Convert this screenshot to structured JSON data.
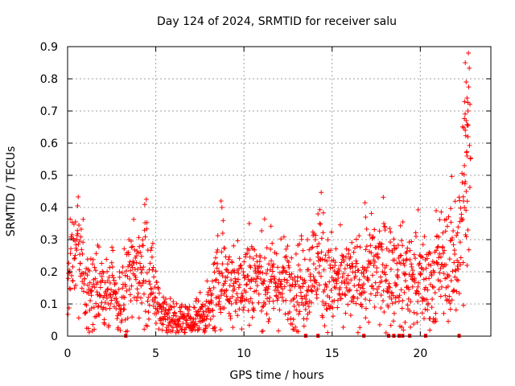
{
  "chart_data": {
    "type": "scatter",
    "title": "Day 124 of 2024, SRMTID for receiver salu",
    "xlabel": "GPS time / hours",
    "ylabel": "SRMTID / TECUs",
    "xlim": [
      0,
      24
    ],
    "ylim": [
      0,
      0.9
    ],
    "grid": true,
    "x_ticks": [
      "0",
      "5",
      "10",
      "15",
      "20"
    ],
    "x_tick_values": [
      0,
      5,
      10,
      15,
      20
    ],
    "y_ticks": [
      "0",
      "0.1",
      "0.2",
      "0.3",
      "0.4",
      "0.5",
      "0.6",
      "0.7",
      "0.8",
      "0.9"
    ],
    "y_tick_values": [
      0,
      0.1,
      0.2,
      0.3,
      0.4,
      0.5,
      0.6,
      0.7,
      0.8,
      0.9
    ],
    "marker_color": "#ff0000",
    "trend": [
      [
        0.0,
        0.15
      ],
      [
        0.3,
        0.2
      ],
      [
        0.6,
        0.28
      ],
      [
        0.8,
        0.2
      ],
      [
        1.2,
        0.15
      ],
      [
        1.8,
        0.14
      ],
      [
        2.3,
        0.13
      ],
      [
        3.0,
        0.12
      ],
      [
        3.5,
        0.17
      ],
      [
        4.0,
        0.22
      ],
      [
        4.4,
        0.26
      ],
      [
        4.8,
        0.15
      ],
      [
        5.2,
        0.1
      ],
      [
        5.7,
        0.06
      ],
      [
        6.2,
        0.05
      ],
      [
        7.0,
        0.05
      ],
      [
        7.5,
        0.06
      ],
      [
        8.0,
        0.08
      ],
      [
        8.4,
        0.14
      ],
      [
        8.8,
        0.2
      ],
      [
        9.3,
        0.15
      ],
      [
        9.8,
        0.16
      ],
      [
        10.5,
        0.19
      ],
      [
        11.0,
        0.17
      ],
      [
        12.0,
        0.16
      ],
      [
        13.0,
        0.17
      ],
      [
        13.5,
        0.16
      ],
      [
        14.3,
        0.24
      ],
      [
        14.8,
        0.17
      ],
      [
        15.5,
        0.16
      ],
      [
        16.5,
        0.17
      ],
      [
        17.0,
        0.2
      ],
      [
        18.0,
        0.2
      ],
      [
        19.0,
        0.18
      ],
      [
        20.0,
        0.18
      ],
      [
        20.5,
        0.17
      ],
      [
        21.0,
        0.2
      ],
      [
        21.7,
        0.23
      ],
      [
        22.2,
        0.27
      ],
      [
        22.5,
        0.5
      ],
      [
        22.8,
        0.58
      ]
    ],
    "spikes": [
      [
        8.7,
        0.42
      ],
      [
        8.75,
        0.4
      ],
      [
        8.8,
        0.32
      ],
      [
        10.3,
        0.35
      ],
      [
        13.6,
        0.3
      ],
      [
        14.2,
        0.38
      ],
      [
        14.3,
        0.35
      ],
      [
        16.9,
        0.37
      ],
      [
        18.0,
        0.33
      ],
      [
        20.9,
        0.39
      ],
      [
        22.55,
        0.85
      ],
      [
        22.6,
        0.79
      ],
      [
        22.65,
        0.74
      ],
      [
        22.7,
        0.7
      ],
      [
        22.6,
        0.67
      ],
      [
        22.55,
        0.64
      ],
      [
        22.7,
        0.62
      ],
      [
        22.65,
        0.56
      ],
      [
        22.5,
        0.53
      ],
      [
        22.55,
        0.48
      ],
      [
        22.6,
        0.45
      ],
      [
        22.45,
        0.42
      ],
      [
        22.5,
        0.4
      ],
      [
        22.7,
        0.33
      ],
      [
        22.65,
        0.22
      ]
    ],
    "zero_flags_x": [
      3.3,
      13.5,
      14.2,
      16.8,
      18.2,
      18.5,
      18.8,
      19.0,
      19.4,
      20.3,
      22.2
    ],
    "point_count": 1500
  }
}
